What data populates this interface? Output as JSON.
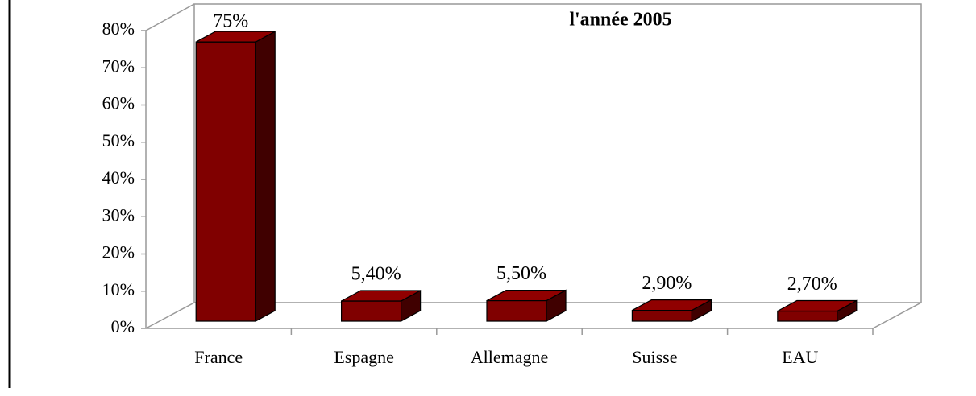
{
  "chart_data": {
    "type": "bar3d",
    "title": "l'année 2005",
    "categories": [
      "France",
      "Espagne",
      "Allemagne",
      "Suisse",
      "EAU"
    ],
    "values": [
      75,
      5.4,
      5.5,
      2.9,
      2.7
    ],
    "value_labels": [
      "75%",
      "5,40%",
      "5,50%",
      "2,90%",
      "2,70%"
    ],
    "color": "#800000",
    "ylim": [
      0,
      80
    ],
    "yticks": [
      {
        "value": 0,
        "label": "0%"
      },
      {
        "value": 10,
        "label": "10%"
      },
      {
        "value": 20,
        "label": "20%"
      },
      {
        "value": 30,
        "label": "30%"
      },
      {
        "value": 40,
        "label": "40%"
      },
      {
        "value": 50,
        "label": "50%"
      },
      {
        "value": 60,
        "label": "60%"
      },
      {
        "value": 70,
        "label": "70%"
      },
      {
        "value": 80,
        "label": "80%"
      }
    ]
  }
}
